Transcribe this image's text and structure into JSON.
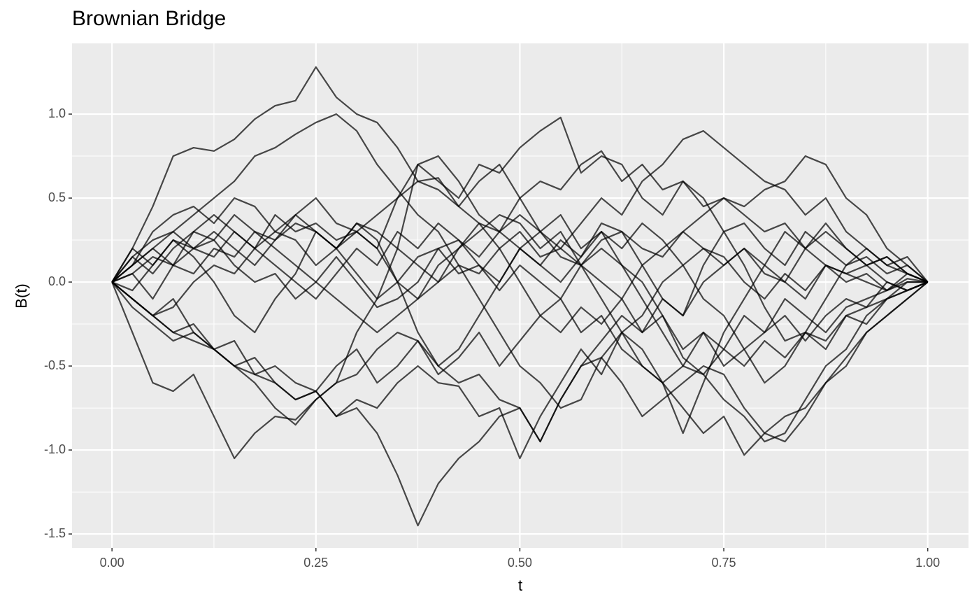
{
  "chart_data": {
    "type": "line",
    "title": "Brownian Bridge",
    "x_label": "t",
    "y_label": "B(t)",
    "x": [
      0,
      0.025,
      0.05,
      0.075,
      0.1,
      0.125,
      0.15,
      0.175,
      0.2,
      0.225,
      0.25,
      0.275,
      0.3,
      0.325,
      0.35,
      0.375,
      0.4,
      0.425,
      0.45,
      0.475,
      0.5,
      0.525,
      0.55,
      0.575,
      0.6,
      0.625,
      0.65,
      0.675,
      0.7,
      0.725,
      0.75,
      0.775,
      0.8,
      0.825,
      0.85,
      0.875,
      0.9,
      0.925,
      0.95,
      0.975,
      1
    ],
    "color": "#000000",
    "alpha": 0.7,
    "grid": true,
    "background": "#ebebeb",
    "xlim": [
      -0.049,
      1.05
    ],
    "ylim": [
      -1.583,
      1.421
    ],
    "xticks": [
      {
        "value": 0,
        "label": "0.00"
      },
      0.25,
      {
        "value": 0.5,
        "label": "0.50"
      },
      0.75,
      {
        "value": 1,
        "label": "1.00"
      }
    ],
    "yticks": [
      -1.5,
      {
        "value": -1,
        "label": "-1.0"
      },
      -0.5,
      {
        "value": 0,
        "label": "0.0"
      },
      0.5,
      {
        "value": 1,
        "label": "1.0"
      }
    ],
    "series": [
      {
        "values": [
          0,
          0.2,
          0.45,
          0.75,
          0.8,
          0.78,
          0.85,
          0.97,
          1.05,
          1.08,
          1.28,
          1.1,
          1.0,
          0.95,
          0.8,
          0.6,
          0.62,
          0.45,
          0.35,
          0.2,
          0.0,
          -0.2,
          -0.1,
          0.1,
          0.25,
          0.3,
          0.2,
          0.15,
          0.3,
          0.2,
          0.1,
          0.2,
          0.05,
          0.0,
          -0.1,
          0.1,
          0.05,
          0.0,
          -0.05,
          0.05,
          0
        ]
      },
      {
        "values": [
          0,
          -0.1,
          -0.2,
          -0.3,
          -0.35,
          -0.4,
          -0.5,
          -0.55,
          -0.6,
          -0.7,
          -0.65,
          -0.8,
          -0.75,
          -0.9,
          -1.15,
          -1.45,
          -1.2,
          -1.05,
          -0.95,
          -0.8,
          -0.75,
          -0.95,
          -0.7,
          -0.5,
          -0.35,
          -0.2,
          -0.3,
          -0.1,
          -0.2,
          0.0,
          0.1,
          0.2,
          0.1,
          0.3,
          0.2,
          0.35,
          0.2,
          0.1,
          0.15,
          0.05,
          0
        ]
      },
      {
        "values": [
          0,
          -0.3,
          -0.6,
          -0.65,
          -0.55,
          -0.8,
          -1.05,
          -0.9,
          -0.8,
          -0.82,
          -0.7,
          -0.6,
          -0.55,
          -0.4,
          -0.3,
          -0.35,
          -0.5,
          -0.6,
          -0.55,
          -0.7,
          -0.75,
          -0.95,
          -0.7,
          -0.5,
          -0.45,
          -0.6,
          -0.8,
          -0.7,
          -0.6,
          -0.5,
          -0.55,
          -0.75,
          -0.9,
          -0.95,
          -0.8,
          -0.6,
          -0.5,
          -0.3,
          -0.2,
          -0.1,
          0
        ]
      },
      {
        "values": [
          0,
          0.1,
          0.2,
          0.1,
          0.3,
          0.4,
          0.3,
          0.2,
          0.4,
          0.3,
          0.35,
          0.25,
          0.3,
          0.2,
          0.5,
          0.7,
          0.6,
          0.5,
          0.7,
          0.65,
          0.8,
          0.9,
          0.98,
          0.65,
          0.75,
          0.7,
          0.5,
          0.4,
          0.6,
          0.5,
          0.3,
          0.35,
          0.2,
          0.1,
          0.3,
          0.2,
          0.1,
          0.15,
          0.05,
          0.1,
          0
        ]
      },
      {
        "values": [
          0,
          0.05,
          -0.1,
          0.1,
          0.2,
          0.3,
          0.2,
          0.1,
          0.25,
          0.4,
          0.3,
          0.2,
          0.35,
          0.3,
          0.2,
          0.1,
          0.0,
          0.2,
          0.35,
          0.3,
          0.4,
          0.3,
          0.2,
          0.35,
          0.5,
          0.4,
          0.6,
          0.7,
          0.85,
          0.9,
          0.8,
          0.7,
          0.6,
          0.55,
          0.4,
          0.5,
          0.3,
          0.2,
          0.1,
          0.15,
          0
        ]
      },
      {
        "values": [
          0,
          -0.1,
          -0.2,
          -0.15,
          0.0,
          0.1,
          0.05,
          0.2,
          0.1,
          0.0,
          -0.1,
          0.05,
          0.2,
          0.1,
          0.3,
          0.2,
          0.35,
          0.25,
          0.1,
          0.0,
          0.2,
          0.3,
          0.15,
          0.1,
          -0.1,
          -0.3,
          -0.5,
          -0.6,
          -0.75,
          -0.9,
          -0.8,
          -1.03,
          -0.9,
          -0.8,
          -0.75,
          -0.6,
          -0.45,
          -0.3,
          -0.2,
          -0.1,
          0
        ]
      },
      {
        "values": [
          0,
          0.15,
          0.05,
          0.2,
          0.3,
          0.25,
          0.4,
          0.3,
          0.2,
          0.1,
          0.0,
          -0.1,
          -0.2,
          -0.3,
          -0.2,
          -0.1,
          0.0,
          0.1,
          0.05,
          0.2,
          0.3,
          0.15,
          0.2,
          0.1,
          0.0,
          -0.1,
          0.1,
          0.2,
          0.3,
          0.4,
          0.5,
          0.45,
          0.55,
          0.6,
          0.75,
          0.7,
          0.5,
          0.4,
          0.2,
          0.1,
          0
        ]
      },
      {
        "values": [
          0,
          -0.1,
          -0.2,
          -0.3,
          -0.25,
          -0.4,
          -0.5,
          -0.45,
          -0.6,
          -0.7,
          -0.65,
          -0.8,
          -0.7,
          -0.75,
          -0.6,
          -0.5,
          -0.6,
          -0.62,
          -0.8,
          -0.75,
          -1.05,
          -0.8,
          -0.6,
          -0.4,
          -0.55,
          -0.3,
          -0.4,
          -0.6,
          -0.5,
          -0.3,
          -0.4,
          -0.2,
          -0.3,
          -0.1,
          -0.2,
          -0.3,
          -0.15,
          -0.1,
          -0.05,
          0.0,
          0
        ]
      },
      {
        "values": [
          0,
          0.1,
          0.2,
          0.3,
          0.4,
          0.5,
          0.6,
          0.75,
          0.8,
          0.88,
          0.95,
          1.0,
          0.9,
          0.7,
          0.55,
          0.4,
          0.3,
          0.1,
          -0.1,
          -0.3,
          -0.5,
          -0.6,
          -0.75,
          -0.7,
          -0.45,
          -0.3,
          -0.2,
          0.0,
          0.1,
          -0.1,
          -0.2,
          -0.4,
          -0.3,
          -0.2,
          -0.35,
          -0.2,
          -0.1,
          -0.15,
          0.0,
          -0.05,
          0
        ]
      },
      {
        "values": [
          0,
          0.2,
          0.1,
          0.25,
          0.2,
          0.15,
          0.3,
          0.2,
          0.3,
          0.25,
          0.1,
          0.2,
          0.3,
          0.2,
          0.0,
          -0.1,
          0.1,
          0.2,
          0.3,
          0.4,
          0.35,
          0.2,
          0.3,
          0.1,
          0.2,
          0.1,
          -0.1,
          -0.3,
          -0.5,
          -0.55,
          -0.7,
          -0.8,
          -0.95,
          -0.9,
          -0.7,
          -0.5,
          -0.4,
          -0.2,
          -0.1,
          0.0,
          0
        ]
      },
      {
        "values": [
          0,
          -0.1,
          -0.2,
          -0.1,
          -0.3,
          -0.4,
          -0.5,
          -0.6,
          -0.75,
          -0.85,
          -0.7,
          -0.6,
          -0.3,
          -0.1,
          0.2,
          0.7,
          0.75,
          0.6,
          0.4,
          0.3,
          0.5,
          0.3,
          0.4,
          0.2,
          0.3,
          0.1,
          0.0,
          -0.2,
          -0.4,
          -0.3,
          -0.5,
          -0.4,
          -0.6,
          -0.5,
          -0.3,
          -0.4,
          -0.2,
          -0.25,
          -0.1,
          -0.05,
          0
        ]
      },
      {
        "values": [
          0,
          0.05,
          0.15,
          0.1,
          0.05,
          0.2,
          0.15,
          0.3,
          0.25,
          0.35,
          0.3,
          0.2,
          0.05,
          -0.1,
          0.0,
          0.15,
          0.2,
          0.05,
          0.1,
          -0.05,
          0.1,
          0.0,
          -0.1,
          -0.3,
          -0.2,
          -0.4,
          -0.5,
          -0.6,
          -0.9,
          -0.6,
          -0.3,
          -0.1,
          0.1,
          0.0,
          0.2,
          0.1,
          0.05,
          0.1,
          0.0,
          -0.05,
          0
        ]
      },
      {
        "values": [
          0,
          0.15,
          0.25,
          0.3,
          0.2,
          0.25,
          0.1,
          0.0,
          0.05,
          -0.1,
          0.0,
          0.15,
          0.0,
          -0.15,
          -0.1,
          0.0,
          0.2,
          0.25,
          0.15,
          0.3,
          0.2,
          0.1,
          0.25,
          0.15,
          0.3,
          0.2,
          0.35,
          0.25,
          0.1,
          0.2,
          0.15,
          0.0,
          -0.1,
          0.05,
          -0.05,
          0.1,
          0.0,
          0.05,
          -0.05,
          0.02,
          0
        ]
      },
      {
        "values": [
          0,
          0.1,
          0.3,
          0.4,
          0.45,
          0.35,
          0.5,
          0.45,
          0.3,
          0.4,
          0.5,
          0.35,
          0.3,
          0.4,
          0.5,
          0.6,
          0.55,
          0.45,
          0.6,
          0.7,
          0.5,
          0.6,
          0.55,
          0.7,
          0.78,
          0.6,
          0.7,
          0.55,
          0.6,
          0.45,
          0.5,
          0.4,
          0.3,
          0.35,
          0.2,
          0.3,
          0.2,
          0.1,
          0.15,
          0.05,
          0
        ]
      },
      {
        "values": [
          0,
          -0.15,
          -0.25,
          -0.35,
          -0.3,
          -0.4,
          -0.35,
          -0.55,
          -0.5,
          -0.6,
          -0.65,
          -0.5,
          -0.4,
          -0.6,
          -0.5,
          -0.35,
          -0.55,
          -0.45,
          -0.3,
          -0.5,
          -0.35,
          -0.2,
          -0.3,
          -0.15,
          -0.25,
          -0.1,
          -0.3,
          -0.2,
          -0.45,
          -0.55,
          -0.4,
          -0.5,
          -0.35,
          -0.45,
          -0.3,
          -0.35,
          -0.2,
          -0.15,
          -0.1,
          -0.05,
          0
        ]
      },
      {
        "values": [
          0,
          -0.05,
          0.1,
          0.25,
          0.15,
          0.0,
          -0.2,
          -0.3,
          -0.1,
          0.05,
          0.3,
          0.2,
          0.35,
          0.25,
          0.0,
          -0.3,
          -0.5,
          -0.4,
          -0.2,
          0.0,
          0.2,
          0.1,
          0.0,
          0.15,
          0.35,
          0.3,
          0.1,
          -0.1,
          -0.2,
          0.1,
          0.3,
          0.1,
          -0.15,
          -0.35,
          -0.3,
          -0.1,
          0.1,
          0.2,
          0.1,
          0.05,
          0
        ]
      }
    ]
  }
}
